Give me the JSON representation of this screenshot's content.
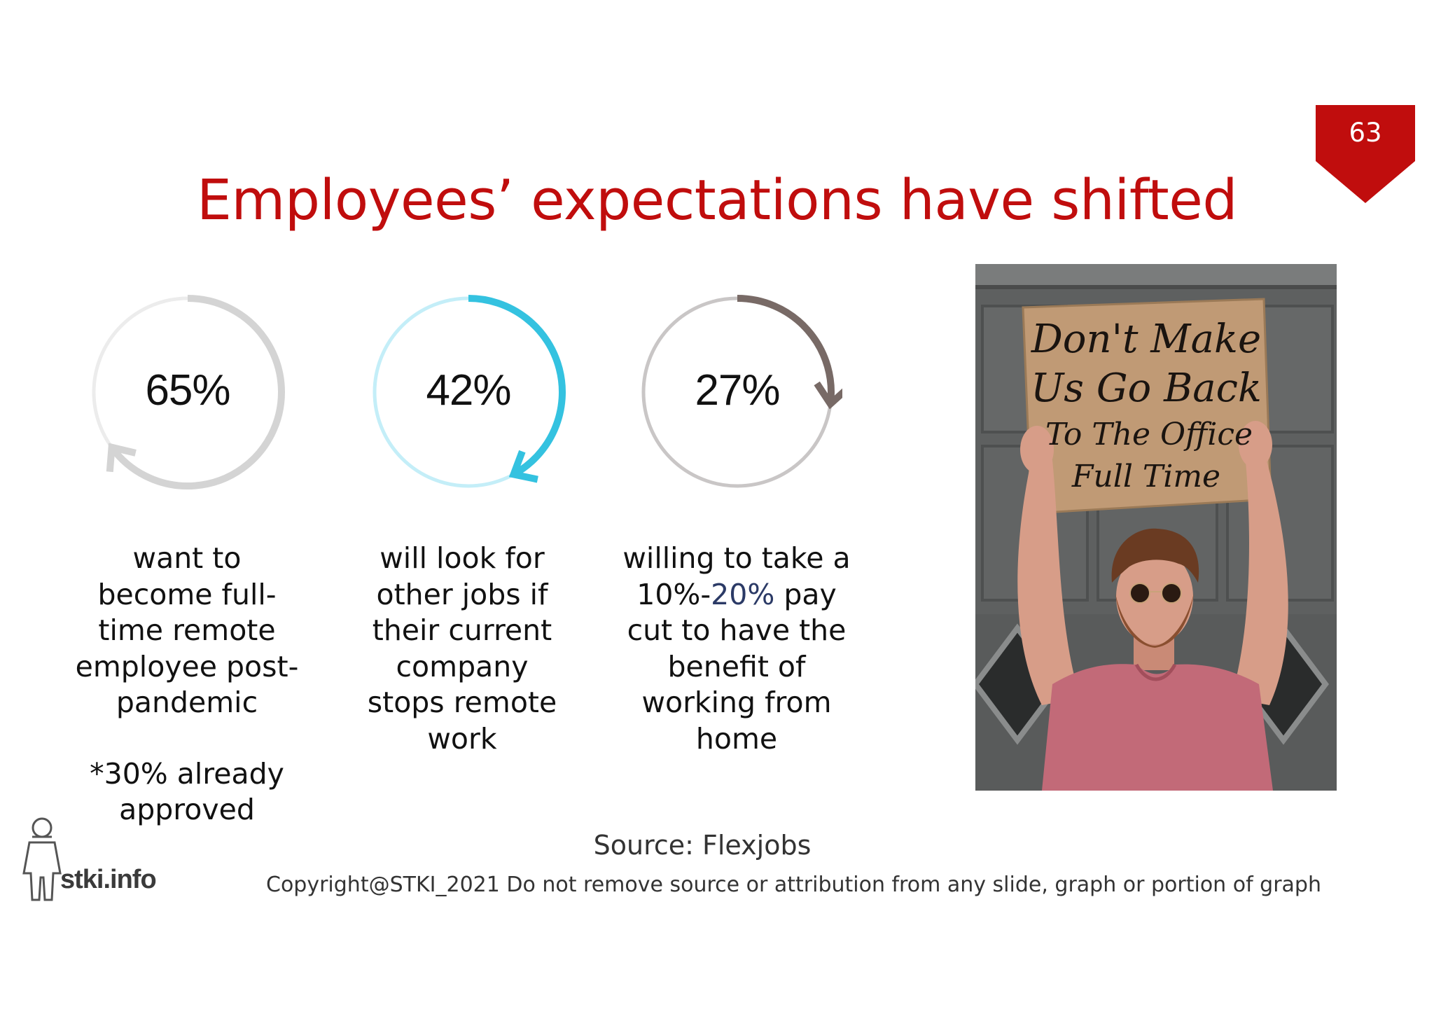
{
  "slide": {
    "page_number": "63",
    "title": "Employees’ expectations have shifted",
    "source": "Source: Flexjobs",
    "copyright": "Copyright@STKI_2021 Do not remove source or attribution from any slide, graph or portion of graph",
    "logo_text": "stki.info"
  },
  "stats": [
    {
      "value": "65%",
      "fraction": 0.65,
      "color": "#d4d4d4",
      "lines": [
        "want to",
        "become full-",
        "time remote",
        "employee post-",
        "pandemic"
      ],
      "note_lines": [
        "*30% already",
        "approved"
      ]
    },
    {
      "value": "42%",
      "fraction": 0.42,
      "color": "#34c2e0",
      "lines": [
        "will look for",
        "other jobs if",
        "their current",
        "company",
        "stops remote",
        "work"
      ]
    },
    {
      "value": "27%",
      "fraction": 0.27,
      "color": "#786a66",
      "line1": "willing to take a",
      "line2_a": "10%-",
      "line2_b": "20%",
      "line2_c": " pay",
      "lines_rest": [
        "cut to have the",
        "benefit of",
        "working from",
        "home"
      ]
    }
  ],
  "photo": {
    "sign_lines": [
      "Don't Make",
      "Us Go Back",
      "To The Office",
      "Full Time"
    ],
    "colors": {
      "wall": "#5e6060",
      "sign": "#c09a75",
      "shirt": "#c26a78",
      "skin": "#d79d88",
      "hair": "#6a3b22"
    }
  }
}
